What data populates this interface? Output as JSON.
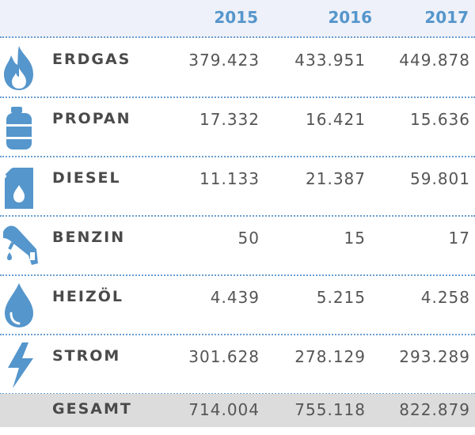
{
  "colors": {
    "accent": "#5596cc",
    "header_bg": "#eef1f9",
    "total_bg": "#dcdcdc",
    "text": "#4a4a4a"
  },
  "header": {
    "years": [
      "2015",
      "2016",
      "2017"
    ]
  },
  "rows": [
    {
      "icon": "flame-icon",
      "label": "ERDGAS",
      "values": [
        "379.423",
        "433.951",
        "449.878"
      ]
    },
    {
      "icon": "gas-cylinder-icon",
      "label": "PROPAN",
      "values": [
        "17.332",
        "16.421",
        "15.636"
      ]
    },
    {
      "icon": "jerrycan-icon",
      "label": "DIESEL",
      "values": [
        "11.133",
        "21.387",
        "59.801"
      ]
    },
    {
      "icon": "fuel-nozzle-icon",
      "label": "BENZIN",
      "values": [
        "50",
        "15",
        "17"
      ]
    },
    {
      "icon": "oil-drop-icon",
      "label": "HEIZÖL",
      "values": [
        "4.439",
        "5.215",
        "4.258"
      ]
    },
    {
      "icon": "lightning-icon",
      "label": "STROM",
      "values": [
        "301.628",
        "278.129",
        "293.289"
      ]
    }
  ],
  "total": {
    "label": "GESAMT",
    "values": [
      "714.004",
      "755.118",
      "822.879"
    ]
  }
}
